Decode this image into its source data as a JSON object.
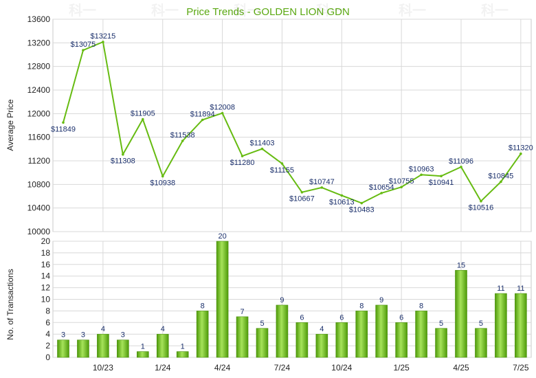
{
  "chart_data": [
    {
      "type": "line",
      "title": "Price Trends - GOLDEN LION GDN",
      "ylabel": "Average Price",
      "ylim": [
        10000,
        13600
      ],
      "yticks": [
        10000,
        10400,
        10800,
        11200,
        11600,
        12000,
        12400,
        12800,
        13200,
        13600
      ],
      "color": "#66bb11",
      "grid": true,
      "points": [
        {
          "x": "2023-08",
          "y": 11849,
          "label": "$11849"
        },
        {
          "x": "2023-09",
          "y": 13075,
          "label": "$13075"
        },
        {
          "x": "2023-10",
          "y": 13215,
          "label": "$13215"
        },
        {
          "x": "2023-11",
          "y": 11308,
          "label": "$11308"
        },
        {
          "x": "2023-12",
          "y": 11905,
          "label": "$11905"
        },
        {
          "x": "2024-01",
          "y": 10938,
          "label": "$10938"
        },
        {
          "x": "2024-02",
          "y": 11538,
          "label": "$11538"
        },
        {
          "x": "2024-03",
          "y": 11894,
          "label": "$11894"
        },
        {
          "x": "2024-04",
          "y": 12008,
          "label": "$12008"
        },
        {
          "x": "2024-05",
          "y": 11280,
          "label": "$11280"
        },
        {
          "x": "2024-06",
          "y": 11403,
          "label": "$11403"
        },
        {
          "x": "2024-07",
          "y": 11155,
          "label": "$11155"
        },
        {
          "x": "2024-08",
          "y": 10667,
          "label": "$10667"
        },
        {
          "x": "2024-09",
          "y": 10747,
          "label": "$10747"
        },
        {
          "x": "2024-10",
          "y": 10613,
          "label": "$10613"
        },
        {
          "x": "2024-11",
          "y": 10483,
          "label": "$10483"
        },
        {
          "x": "2024-12",
          "y": 10654,
          "label": "$10654"
        },
        {
          "x": "2025-01",
          "y": 10755,
          "label": "$10755"
        },
        {
          "x": "2025-02",
          "y": 10963,
          "label": "$10963"
        },
        {
          "x": "2025-03",
          "y": 10941,
          "label": "$10941"
        },
        {
          "x": "2025-04",
          "y": 11096,
          "label": "$11096"
        },
        {
          "x": "2025-05",
          "y": 10516,
          "label": "$10516"
        },
        {
          "x": "2025-06",
          "y": 10845,
          "label": "$10845"
        },
        {
          "x": "2025-07",
          "y": 11320,
          "label": "$11320"
        }
      ]
    },
    {
      "type": "bar",
      "ylabel": "No. of Transactions",
      "ylim": [
        0,
        20
      ],
      "yticks": [
        0,
        2,
        4,
        6,
        8,
        10,
        12,
        14,
        16,
        18,
        20
      ],
      "color": "#66bb11",
      "grid": true,
      "xtick_labels": [
        "10/23",
        "1/24",
        "4/24",
        "7/24",
        "10/24",
        "1/25",
        "4/25",
        "7/25"
      ],
      "bars": [
        {
          "x": "2023-08",
          "value": 3
        },
        {
          "x": "2023-09",
          "value": 3
        },
        {
          "x": "2023-10",
          "value": 4
        },
        {
          "x": "2023-11",
          "value": 3
        },
        {
          "x": "2023-12",
          "value": 1
        },
        {
          "x": "2024-01",
          "value": 4
        },
        {
          "x": "2024-02",
          "value": 1
        },
        {
          "x": "2024-03",
          "value": 8
        },
        {
          "x": "2024-04",
          "value": 20
        },
        {
          "x": "2024-05",
          "value": 7
        },
        {
          "x": "2024-06",
          "value": 5
        },
        {
          "x": "2024-07",
          "value": 9
        },
        {
          "x": "2024-08",
          "value": 6
        },
        {
          "x": "2024-09",
          "value": 4
        },
        {
          "x": "2024-10",
          "value": 6
        },
        {
          "x": "2024-11",
          "value": 8
        },
        {
          "x": "2024-12",
          "value": 9
        },
        {
          "x": "2025-01",
          "value": 6
        },
        {
          "x": "2025-02",
          "value": 8
        },
        {
          "x": "2025-03",
          "value": 5
        },
        {
          "x": "2025-04",
          "value": 15
        },
        {
          "x": "2025-05",
          "value": 5
        },
        {
          "x": "2025-06",
          "value": 11
        },
        {
          "x": "2025-07",
          "value": 11
        }
      ]
    }
  ],
  "watermark": "科一"
}
